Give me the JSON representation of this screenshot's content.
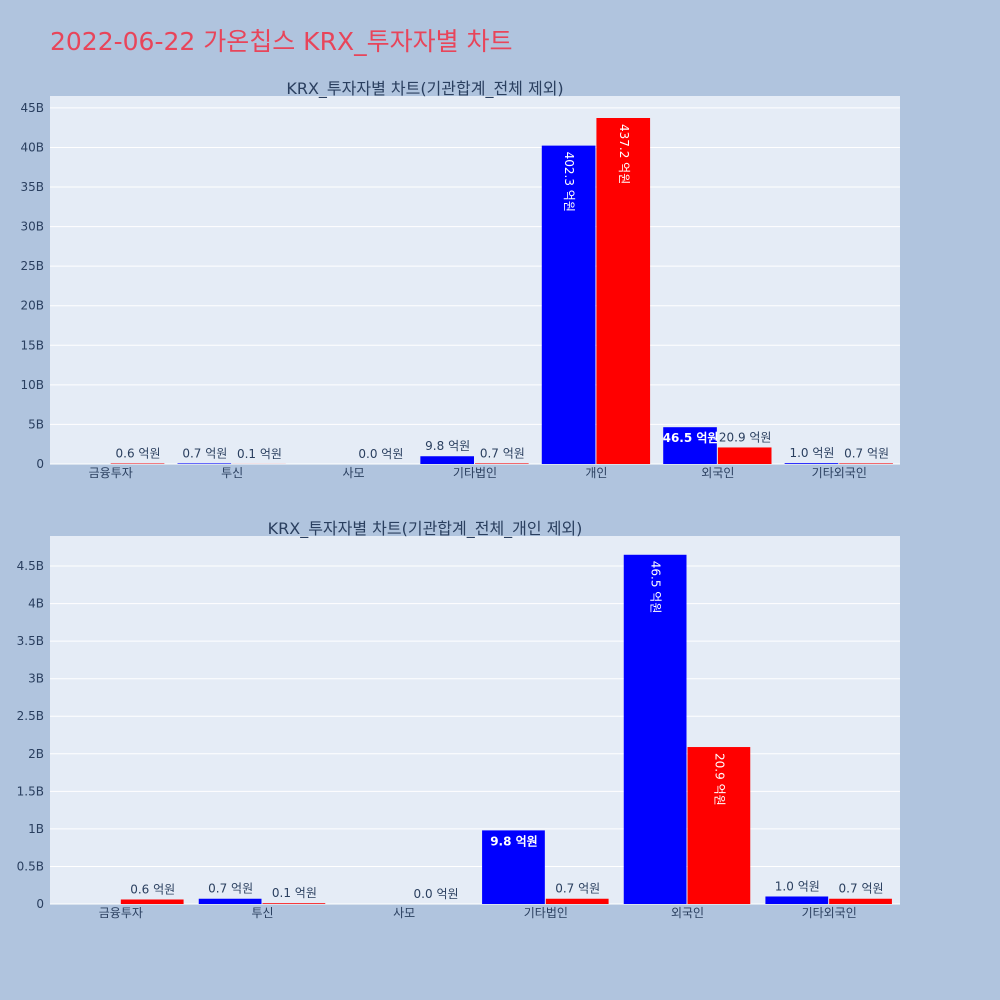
{
  "page": {
    "title": "2022-06-22 가온칩스 KRX_투자자별 차트"
  },
  "colors": {
    "background": "#b0c4de",
    "plot_background": "#e5ecf6",
    "title": "#e8455a",
    "series_a": "#0000ff",
    "series_b": "#ff0000"
  },
  "chart_data": [
    {
      "type": "bar",
      "title": "KRX_투자자별 차트(기관합계_전체 제외)",
      "categories": [
        "금융투자",
        "투신",
        "사모",
        "기타법인",
        "개인",
        "외국인",
        "기타외국인"
      ],
      "series": [
        {
          "color": "#0000ff",
          "values": [
            0,
            0.07,
            0,
            0.98,
            40.23,
            4.65,
            0.1
          ],
          "labels": [
            "",
            "0.7 억원",
            "",
            "9.8 억원",
            "402.3 억원",
            "46.5 억원",
            "1.0 억원"
          ]
        },
        {
          "color": "#ff0000",
          "values": [
            0.06,
            0.01,
            0.0,
            0.07,
            43.72,
            2.09,
            0.07
          ],
          "labels": [
            "0.6 억원",
            "0.1 억원",
            "0.0 억원",
            "0.7 억원",
            "437.2 억원",
            "20.9 억원",
            "0.7 억원"
          ]
        }
      ],
      "yticks": [
        0,
        5,
        10,
        15,
        20,
        25,
        30,
        35,
        40,
        45
      ],
      "ytick_labels": [
        "0",
        "5B",
        "10B",
        "15B",
        "20B",
        "25B",
        "30B",
        "35B",
        "40B",
        "45B"
      ],
      "ylim": [
        0,
        46.5
      ],
      "grid": true
    },
    {
      "type": "bar",
      "title": "KRX_투자자별 차트(기관합계_전체_개인 제외)",
      "categories": [
        "금융투자",
        "투신",
        "사모",
        "기타법인",
        "외국인",
        "기타외국인"
      ],
      "series": [
        {
          "color": "#0000ff",
          "values": [
            0,
            0.07,
            0,
            0.98,
            4.65,
            0.1
          ],
          "labels": [
            "",
            "0.7 억원",
            "",
            "9.8 억원",
            "46.5 억원",
            "1.0 억원"
          ]
        },
        {
          "color": "#ff0000",
          "values": [
            0.06,
            0.01,
            0.0,
            0.07,
            2.09,
            0.07
          ],
          "labels": [
            "0.6 억원",
            "0.1 억원",
            "0.0 억원",
            "0.7 억원",
            "20.9 억원",
            "0.7 억원"
          ]
        }
      ],
      "yticks": [
        0,
        0.5,
        1,
        1.5,
        2,
        2.5,
        3,
        3.5,
        4,
        4.5
      ],
      "ytick_labels": [
        "0",
        "0.5B",
        "1B",
        "1.5B",
        "2B",
        "2.5B",
        "3B",
        "3.5B",
        "4B",
        "4.5B"
      ],
      "ylim": [
        0,
        4.9
      ],
      "grid": true
    }
  ]
}
